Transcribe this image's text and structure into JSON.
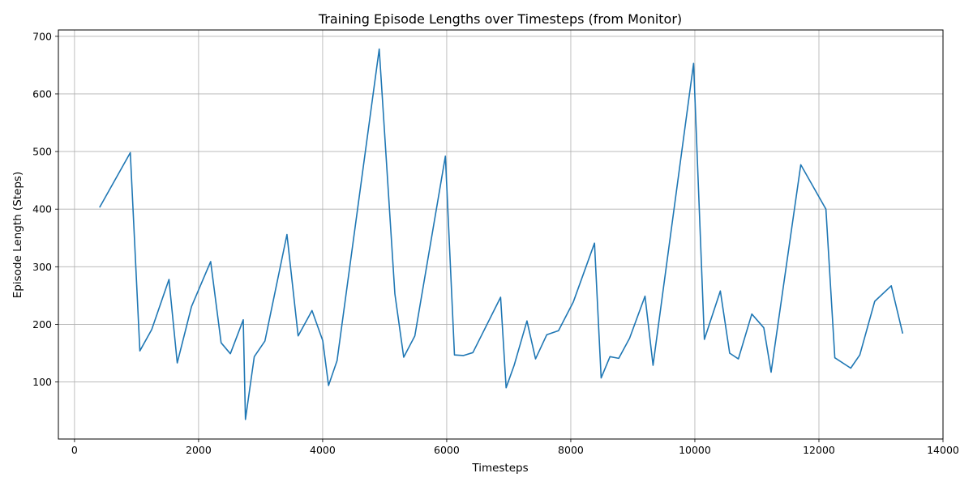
{
  "chart_data": {
    "type": "line",
    "title": "Training Episode Lengths over Timesteps (from Monitor)",
    "xlabel": "Timesteps",
    "ylabel": "Episode Length (Steps)",
    "xlim": [
      -260,
      14000
    ],
    "ylim": [
      1,
      711
    ],
    "xticks": [
      0,
      2000,
      4000,
      6000,
      8000,
      10000,
      12000,
      14000
    ],
    "yticks": [
      100,
      200,
      300,
      400,
      500,
      600,
      700
    ],
    "grid": true,
    "line_color": "#1f77b4",
    "series": [
      {
        "name": "",
        "x": [
          404,
          900,
          1054,
          1245,
          1523,
          1656,
          1886,
          2195,
          2363,
          2512,
          2720,
          2755,
          2898,
          3069,
          3425,
          3605,
          3829,
          4001,
          4095,
          4232,
          4912,
          5164,
          5307,
          5486,
          5978,
          6125,
          6271,
          6422,
          6869,
          6957,
          7087,
          7293,
          7432,
          7613,
          7802,
          8041,
          8382,
          8489,
          8632,
          8773,
          8948,
          9197,
          9326,
          9979,
          10153,
          10411,
          10561,
          10701,
          10918,
          11112,
          11229,
          11707,
          12113,
          12257,
          12512,
          12659,
          12899,
          13166,
          13350
        ],
        "y": [
          403,
          498,
          154,
          191,
          278,
          133,
          231,
          309,
          168,
          149,
          208,
          35,
          144,
          171,
          356,
          180,
          224,
          172,
          94,
          137,
          678,
          253,
          143,
          180,
          492,
          147,
          146,
          151,
          247,
          90,
          129,
          206,
          140,
          182,
          189,
          239,
          341,
          107,
          144,
          141,
          176,
          249,
          129,
          653,
          174,
          258,
          150,
          140,
          218,
          194,
          117,
          477,
          400,
          142,
          124,
          147,
          240,
          267,
          184
        ]
      }
    ]
  }
}
